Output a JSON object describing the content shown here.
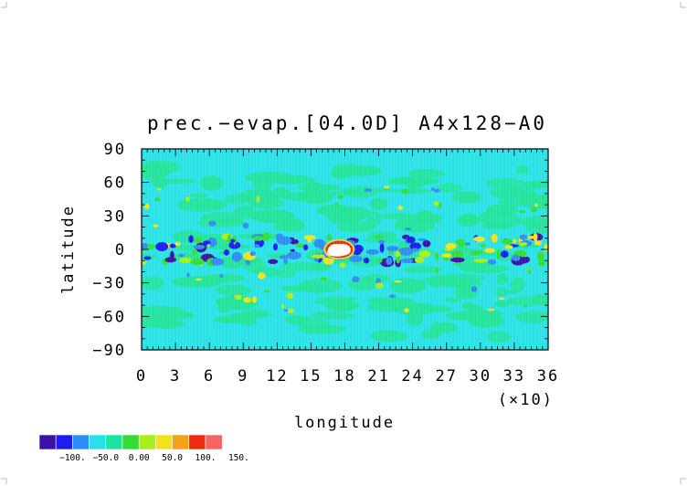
{
  "chart_data": {
    "type": "heatmap",
    "title": "prec.−evap.[04.0D] A4x128−A0",
    "xlabel": "longitude",
    "ylabel": "latitude",
    "x_scale_note": "(×10)",
    "x_ticks": [
      "0",
      "3",
      "6",
      "9",
      "12",
      "15",
      "18",
      "21",
      "24",
      "27",
      "30",
      "33",
      "36"
    ],
    "y_ticks": [
      "90",
      "60",
      "30",
      "0",
      "−30",
      "−60",
      "−90"
    ],
    "xlim": [
      0,
      36
    ],
    "ylim": [
      -90,
      90
    ],
    "colorbar": {
      "tick_labels": [
        "−100.",
        "−50.0",
        "0.00",
        "50.0",
        "100.",
        "150."
      ],
      "colors": [
        "#3a13a6",
        "#1d1df2",
        "#2f8cf5",
        "#29e0e8",
        "#1ee3a0",
        "#33dd33",
        "#a8ee1c",
        "#f0e31e",
        "#f5a21a",
        "#ee2b12",
        "#f86464"
      ]
    },
    "features": {
      "background_level_color": "#29e0e8",
      "max_region": {
        "lon_x10": 17.5,
        "lat": 0,
        "note": "high positive precip-evap cell near equator"
      }
    }
  }
}
